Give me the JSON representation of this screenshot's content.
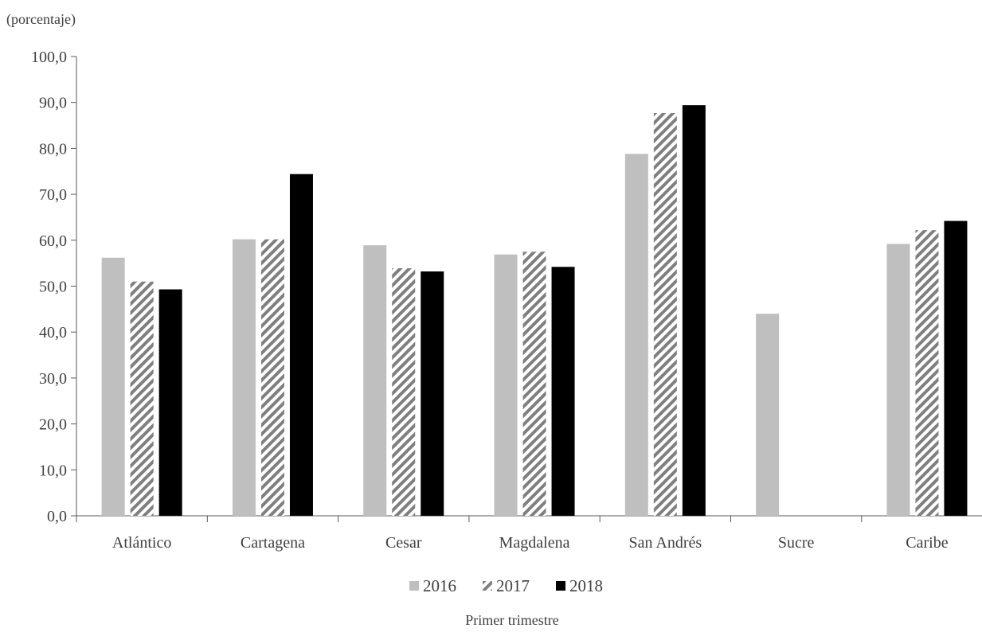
{
  "chart_data": {
    "type": "bar",
    "unit_label": "(porcentaje)",
    "categories": [
      "Atlántico",
      "Cartagena",
      "Cesar",
      "Magdalena",
      "San Andrés",
      "Sucre",
      "Caribe"
    ],
    "series": [
      {
        "name": "2016",
        "values": [
          56.2,
          60.2,
          58.9,
          56.9,
          78.8,
          44.0,
          59.2
        ],
        "color": "#bfbfbf",
        "pattern": "solid"
      },
      {
        "name": "2017",
        "values": [
          51.0,
          60.2,
          53.9,
          57.5,
          87.7,
          null,
          62.2
        ],
        "color": "#7f7f7f",
        "pattern": "hatch"
      },
      {
        "name": "2018",
        "values": [
          49.3,
          74.4,
          53.2,
          54.2,
          89.4,
          null,
          64.2
        ],
        "color": "#000000",
        "pattern": "solid"
      }
    ],
    "ylim": [
      0,
      100
    ],
    "ytick_values": [
      0,
      10,
      20,
      30,
      40,
      50,
      60,
      70,
      80,
      90,
      100
    ],
    "ytick_labels": [
      "0,0",
      "10,0",
      "20,0",
      "30,0",
      "40,0",
      "50,0",
      "60,0",
      "70,0",
      "80,0",
      "90,0",
      "100,0"
    ],
    "xlabel": "Primer trimestre",
    "legend_position": "bottom-center",
    "grid": false
  }
}
